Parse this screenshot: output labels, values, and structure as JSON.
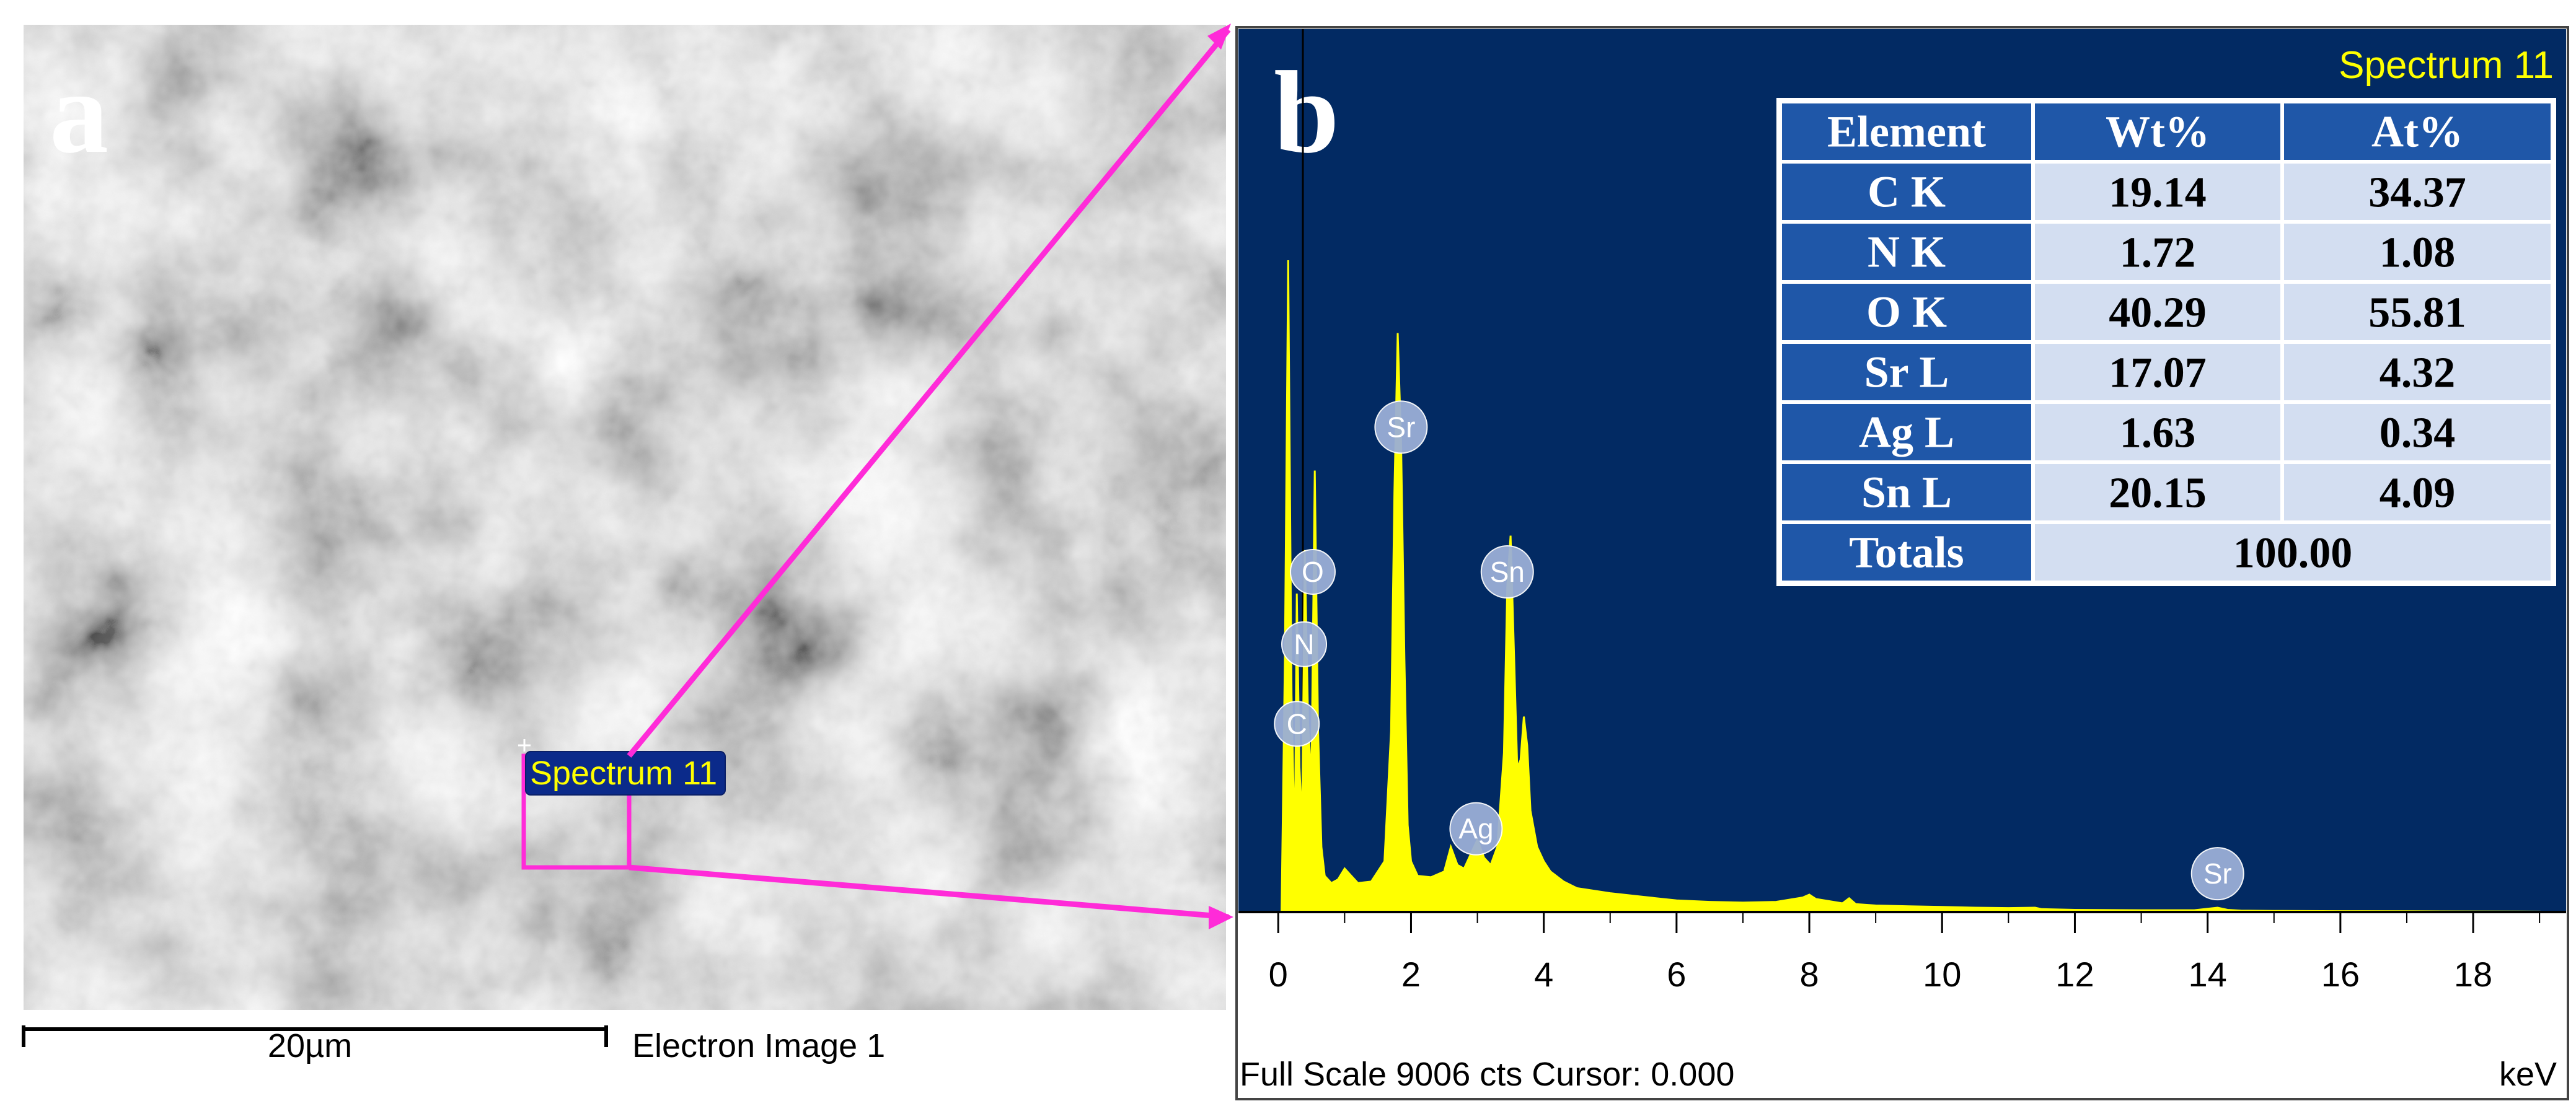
{
  "panel_a": {
    "label": "a",
    "scale_bar_label": "20µm",
    "image_caption": "Electron Image 1",
    "selection_label": "Spectrum 11"
  },
  "panel_b": {
    "label": "b",
    "spectrum_title": "Spectrum 11",
    "footer_left": "Full Scale 9006 cts Cursor: 0.000",
    "footer_right": "keV"
  },
  "table": {
    "headers": [
      "Element",
      "Wt%",
      "At%"
    ],
    "rows": [
      {
        "element": "C K",
        "wt": "19.14",
        "at": "34.37"
      },
      {
        "element": "N K",
        "wt": "1.72",
        "at": "1.08"
      },
      {
        "element": "O K",
        "wt": "40.29",
        "at": "55.81"
      },
      {
        "element": "Sr L",
        "wt": "17.07",
        "at": "4.32"
      },
      {
        "element": "Ag L",
        "wt": "1.63",
        "at": "0.34"
      },
      {
        "element": "Sn L",
        "wt": "20.15",
        "at": "4.09"
      }
    ],
    "totals_label": "Totals",
    "totals_value": "100.00"
  },
  "chart_data": {
    "type": "line",
    "title": "Spectrum 11",
    "xlabel": "keV",
    "ylabel": "",
    "xlim": [
      -0.6,
      19.4
    ],
    "ylim": [
      0,
      9006
    ],
    "xticks": [
      0,
      2,
      4,
      6,
      8,
      10,
      12,
      14,
      16,
      18
    ],
    "full_scale_cts": 9006,
    "grid": false,
    "series": [
      {
        "color": "#ffff00",
        "x": [
          0.05,
          0.1,
          0.15,
          0.2,
          0.25,
          0.28,
          0.32,
          0.36,
          0.4,
          0.45,
          0.5,
          0.55,
          0.6,
          0.65,
          0.7,
          0.8,
          0.9,
          1.0,
          1.1,
          1.2,
          1.4,
          1.6,
          1.7,
          1.75,
          1.8,
          1.85,
          1.9,
          1.95,
          2.0,
          2.1,
          2.3,
          2.5,
          2.6,
          2.7,
          2.8,
          2.9,
          3.0,
          3.1,
          3.2,
          3.3,
          3.4,
          3.45,
          3.5,
          3.55,
          3.6,
          3.65,
          3.7,
          3.75,
          3.8,
          3.9,
          4.0,
          4.1,
          4.3,
          4.5,
          5.0,
          5.5,
          6.0,
          6.5,
          7.0,
          7.5,
          7.9,
          8.0,
          8.1,
          8.5,
          8.6,
          8.7,
          9.0,
          9.5,
          10.0,
          10.5,
          11.0,
          11.4,
          11.5,
          12.0,
          13.0,
          13.8,
          14.0,
          14.15,
          14.3,
          14.5,
          15.0,
          16.0,
          17.0,
          18.0,
          19.0
        ],
        "y": [
          0,
          3500,
          9006,
          3000,
          800,
          4400,
          2000,
          1200,
          5000,
          2600,
          1800,
          6100,
          2500,
          900,
          500,
          400,
          450,
          600,
          500,
          400,
          420,
          700,
          2500,
          5800,
          8000,
          6500,
          3500,
          1200,
          700,
          500,
          480,
          560,
          900,
          650,
          600,
          800,
          1000,
          750,
          650,
          900,
          2200,
          4500,
          5200,
          3600,
          2000,
          2100,
          2700,
          2300,
          1400,
          900,
          700,
          560,
          420,
          330,
          260,
          210,
          160,
          140,
          130,
          140,
          200,
          240,
          180,
          120,
          190,
          110,
          90,
          80,
          70,
          60,
          55,
          60,
          40,
          30,
          25,
          25,
          45,
          60,
          30,
          20,
          15,
          12,
          10,
          8,
          5
        ]
      }
    ],
    "peak_labels": [
      {
        "element": "C",
        "x": 0.28,
        "y": 2600
      },
      {
        "element": "N",
        "x": 0.39,
        "y": 3700
      },
      {
        "element": "O",
        "x": 0.52,
        "y": 4700
      },
      {
        "element": "Sr",
        "x": 1.85,
        "y": 6700
      },
      {
        "element": "Sn",
        "x": 3.45,
        "y": 4700
      },
      {
        "element": "Ag",
        "x": 2.98,
        "y": 1150
      },
      {
        "element": "Sr",
        "x": 14.15,
        "y": 530
      }
    ]
  },
  "colors": {
    "spectrum_background": "#022a63",
    "spectrum_trace": "#ffff00",
    "table_header_fill": "#1f57a8",
    "table_cell_fill": "#d3def1",
    "zoom_lines": "#ff2bd8",
    "label_badge": "#9aaed6"
  }
}
